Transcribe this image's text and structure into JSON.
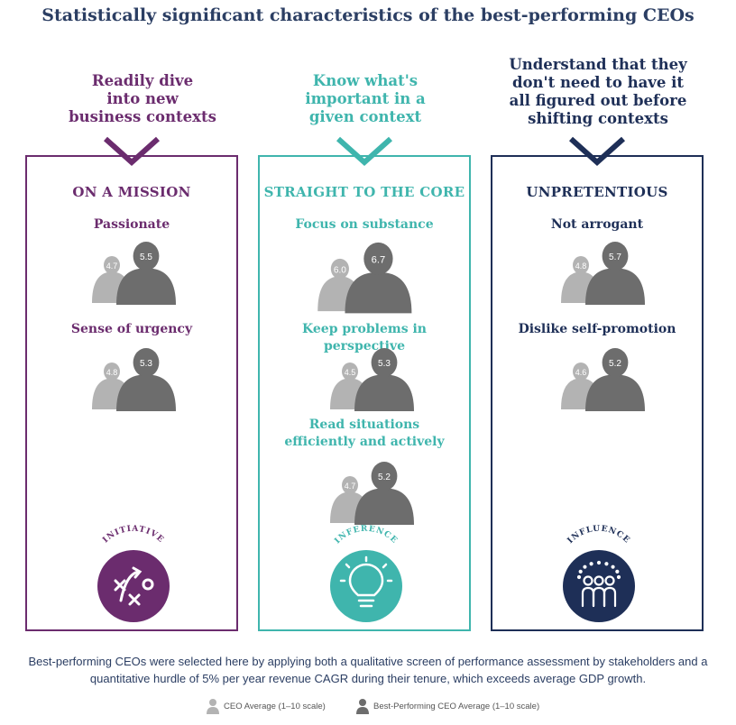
{
  "title": "Statistically significant characteristics of the best-performing CEOs",
  "columns": [
    {
      "heading": "Readily dive\ninto new\nbusiness contexts",
      "section": "ON A MISSION",
      "color": "#6b2c6e",
      "traits": [
        {
          "label": "Passionate",
          "ceo_avg": "4.7",
          "best": "5.5"
        },
        {
          "label": "Sense of urgency",
          "ceo_avg": "4.8",
          "best": "5.3"
        }
      ],
      "badge": "INITIATIVE",
      "badge_icon": "strategy-play-icon"
    },
    {
      "heading": "Know what's\nimportant in a\ngiven context",
      "section": "STRAIGHT TO THE CORE",
      "color": "#3fb5ad",
      "traits": [
        {
          "label": "Focus on substance",
          "ceo_avg": "6.0",
          "best": "6.7"
        },
        {
          "label": "Keep problems in perspective",
          "ceo_avg": "4.5",
          "best": "5.3"
        },
        {
          "label": "Read situations\nefficiently and actively",
          "ceo_avg": "4.7",
          "best": "5.2"
        }
      ],
      "badge": "INFERENCE",
      "badge_icon": "lightbulb-icon"
    },
    {
      "heading": "Understand that they\ndon't need to have it\nall figured out before\nshifting contexts",
      "section": "UNPRETENTIOUS",
      "color": "#1e2f57",
      "traits": [
        {
          "label": "Not arrogant",
          "ceo_avg": "4.8",
          "best": "5.7"
        },
        {
          "label": "Dislike self-promotion",
          "ceo_avg": "4.6",
          "best": "5.2"
        }
      ],
      "badge": "INFLUENCE",
      "badge_icon": "group-icon"
    }
  ],
  "footnote": "Best-performing CEOs were selected here by applying both a qualitative screen of performance assessment by stakeholders and a quantitative hurdle of 5% per year revenue CAGR during their tenure, which exceeds average GDP growth.",
  "legend": {
    "ceo_average": "CEO Average (1–10 scale)",
    "best_performing": "Best-Performing CEO Average (1–10 scale)",
    "ceo_average_color": "#b3b3b3",
    "best_performing_color": "#6d6d6d"
  }
}
